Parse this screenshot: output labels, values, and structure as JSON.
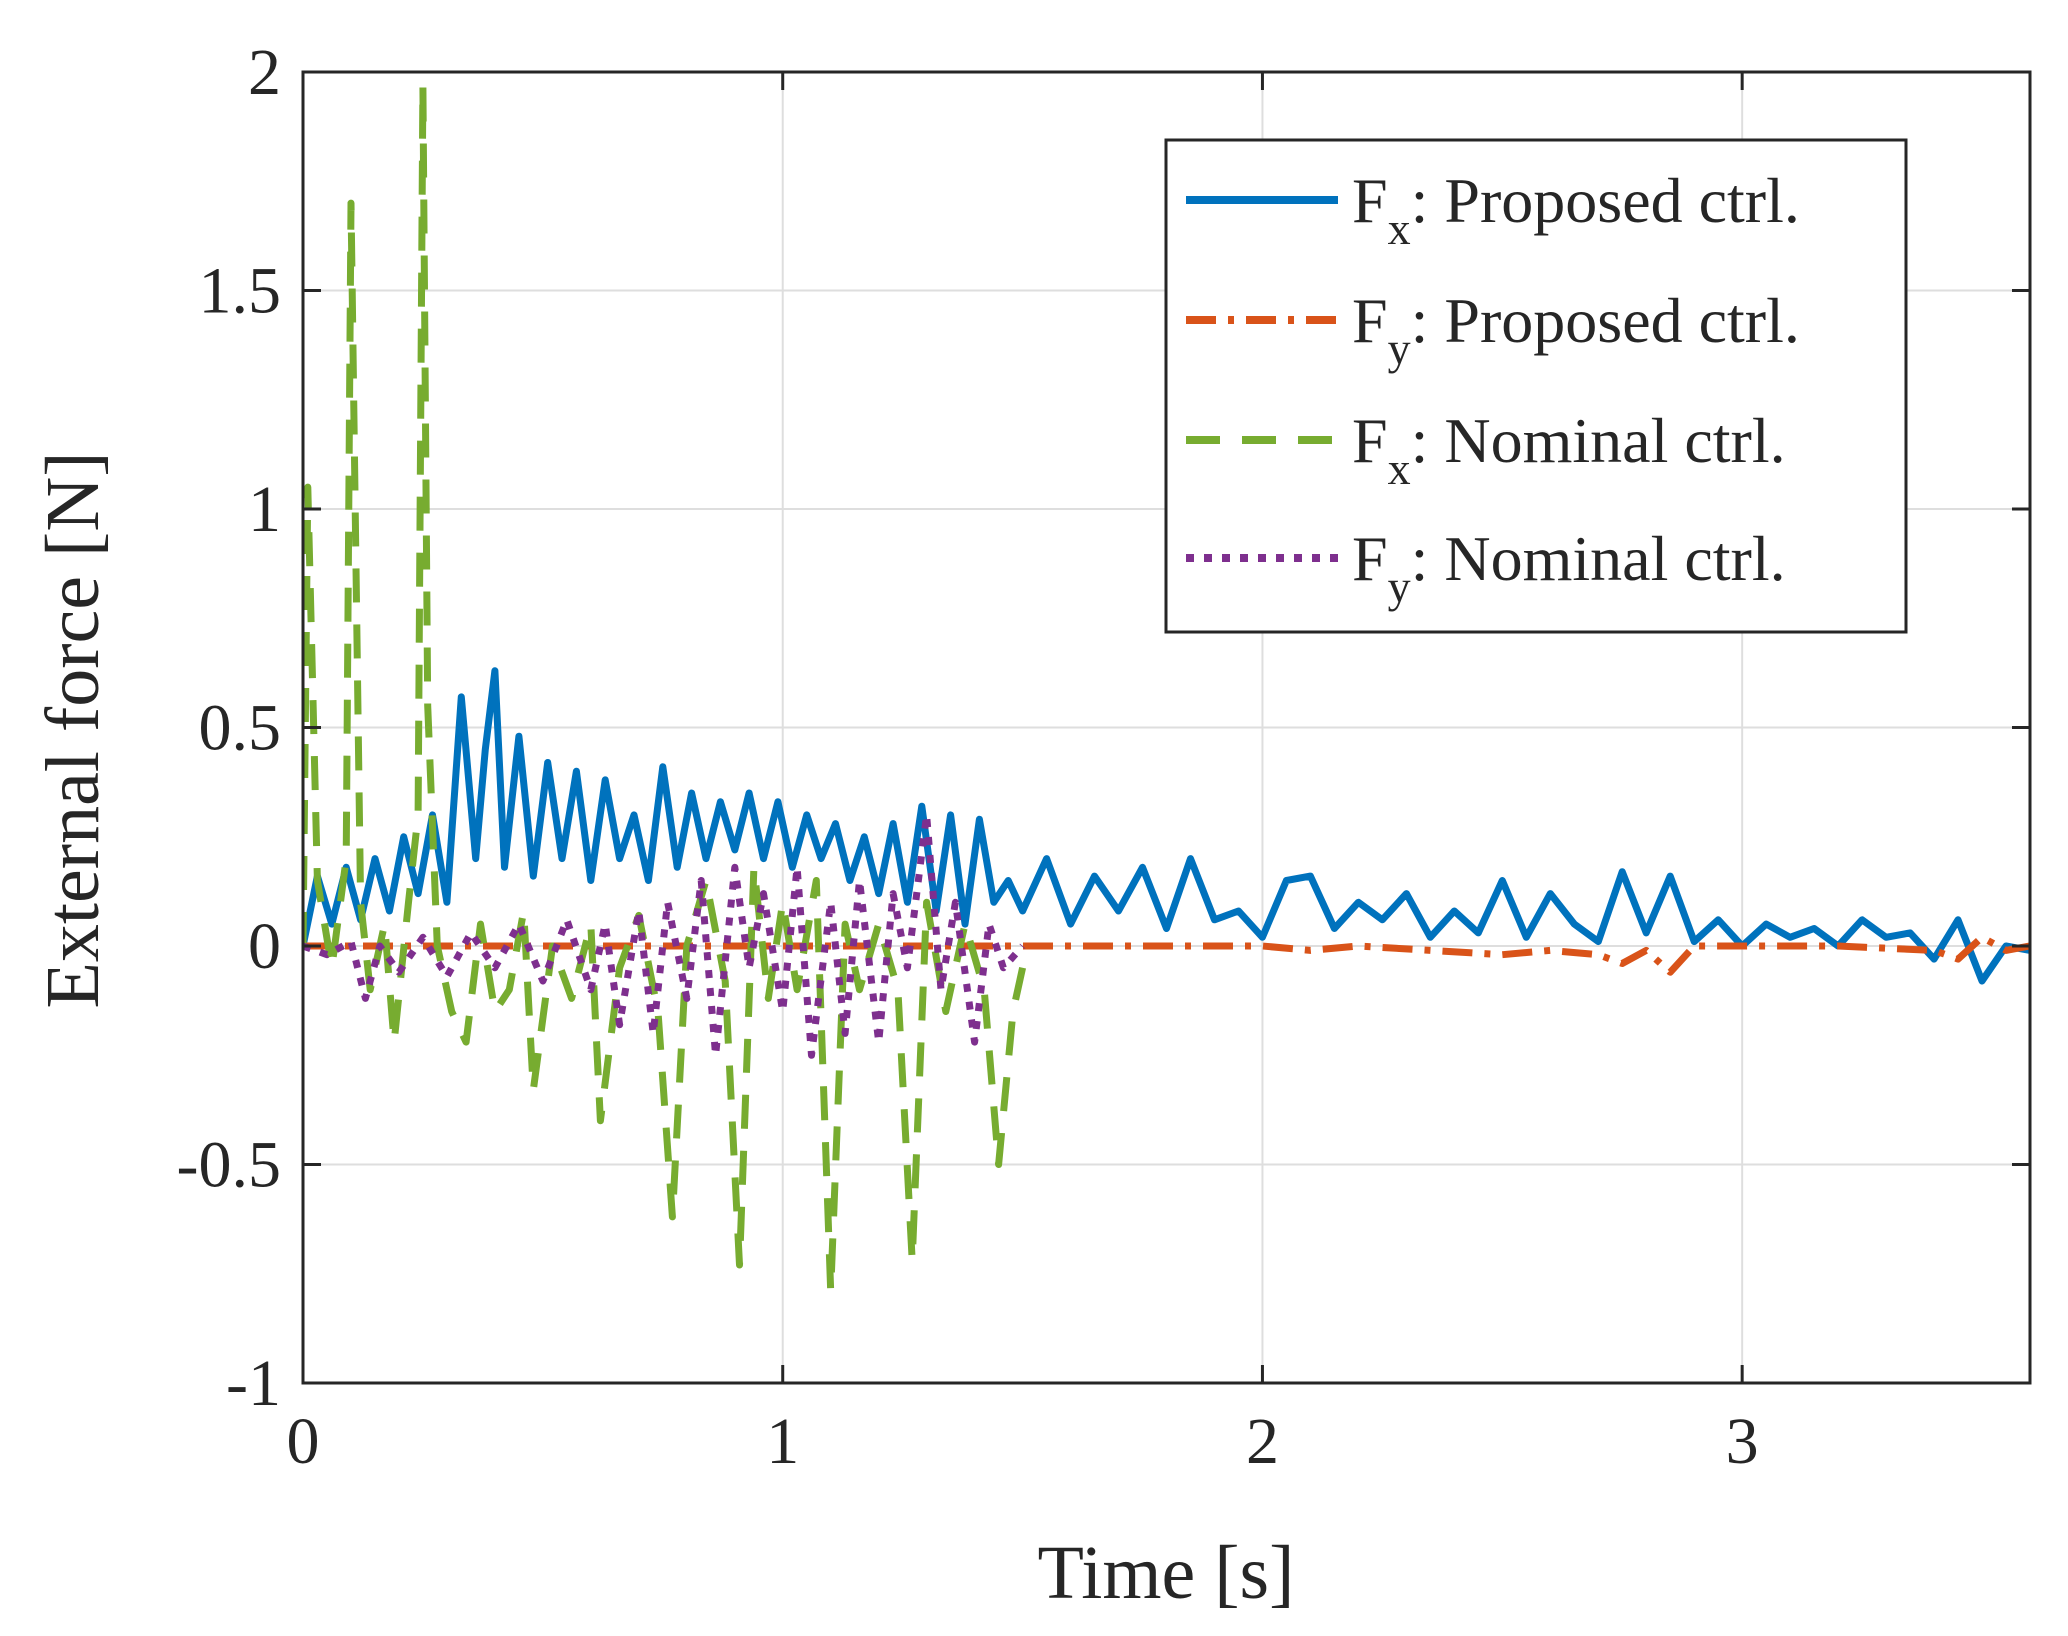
{
  "chart_data": {
    "type": "line",
    "title": "",
    "xlabel": "Time [s]",
    "ylabel": "External force [N]",
    "xlim": [
      0,
      3.6
    ],
    "ylim": [
      -1,
      2
    ],
    "xticks": [
      0,
      1,
      2,
      3
    ],
    "yticks": [
      -1,
      -0.5,
      0,
      0.5,
      1,
      1.5,
      2
    ],
    "xtick_labels": [
      "0",
      "1",
      "2",
      "3"
    ],
    "ytick_labels": [
      "-1",
      "-0.5",
      "0",
      "0.5",
      "1",
      "1.5",
      "2"
    ],
    "grid": true,
    "legend": {
      "position": "top-right",
      "entries": [
        {
          "symbol": "F",
          "subscript": "x",
          "text": ": Proposed ctrl."
        },
        {
          "symbol": "F",
          "subscript": "y",
          "text": ": Proposed ctrl."
        },
        {
          "symbol": "F",
          "subscript": "x",
          "text": ": Nominal ctrl."
        },
        {
          "symbol": "F",
          "subscript": "y",
          "text": ": Nominal ctrl."
        }
      ]
    },
    "series": [
      {
        "name": "Fx: Proposed ctrl.",
        "color": "#0072BD",
        "style": "solid",
        "x": [
          0,
          0.03,
          0.06,
          0.09,
          0.12,
          0.15,
          0.18,
          0.21,
          0.24,
          0.27,
          0.3,
          0.33,
          0.36,
          0.38,
          0.4,
          0.42,
          0.45,
          0.48,
          0.51,
          0.54,
          0.57,
          0.6,
          0.63,
          0.66,
          0.69,
          0.72,
          0.75,
          0.78,
          0.81,
          0.84,
          0.87,
          0.9,
          0.93,
          0.96,
          0.99,
          1.02,
          1.05,
          1.08,
          1.11,
          1.14,
          1.17,
          1.2,
          1.23,
          1.26,
          1.29,
          1.32,
          1.35,
          1.38,
          1.41,
          1.44,
          1.47,
          1.5,
          1.55,
          1.6,
          1.65,
          1.7,
          1.75,
          1.8,
          1.85,
          1.9,
          1.95,
          2.0,
          2.05,
          2.1,
          2.15,
          2.2,
          2.25,
          2.3,
          2.35,
          2.4,
          2.45,
          2.5,
          2.55,
          2.6,
          2.65,
          2.7,
          2.75,
          2.8,
          2.85,
          2.9,
          2.95,
          3.0,
          3.05,
          3.1,
          3.15,
          3.2,
          3.25,
          3.3,
          3.35,
          3.4,
          3.45,
          3.5,
          3.55,
          3.6
        ],
        "values": [
          0.0,
          0.16,
          0.05,
          0.18,
          0.06,
          0.2,
          0.08,
          0.25,
          0.12,
          0.3,
          0.1,
          0.57,
          0.2,
          0.45,
          0.63,
          0.18,
          0.48,
          0.16,
          0.42,
          0.2,
          0.4,
          0.15,
          0.38,
          0.2,
          0.3,
          0.15,
          0.41,
          0.18,
          0.35,
          0.2,
          0.33,
          0.22,
          0.35,
          0.2,
          0.33,
          0.18,
          0.3,
          0.2,
          0.28,
          0.15,
          0.25,
          0.12,
          0.28,
          0.1,
          0.32,
          0.08,
          0.3,
          0.05,
          0.29,
          0.1,
          0.15,
          0.08,
          0.2,
          0.05,
          0.16,
          0.08,
          0.18,
          0.04,
          0.2,
          0.06,
          0.08,
          0.02,
          0.15,
          0.16,
          0.04,
          0.1,
          0.06,
          0.12,
          0.02,
          0.08,
          0.03,
          0.15,
          0.02,
          0.12,
          0.05,
          0.01,
          0.17,
          0.03,
          0.16,
          0.01,
          0.06,
          0.0,
          0.05,
          0.02,
          0.04,
          0.0,
          0.06,
          0.02,
          0.03,
          -0.03,
          0.06,
          -0.08,
          0.0,
          -0.01
        ]
      },
      {
        "name": "Fy: Proposed ctrl.",
        "color": "#D95319",
        "style": "dashdot",
        "x": [
          0,
          0.3,
          0.5,
          0.8,
          1.0,
          1.3,
          1.5,
          1.8,
          2.0,
          2.1,
          2.2,
          2.5,
          2.6,
          2.7,
          2.75,
          2.8,
          2.85,
          2.9,
          3.0,
          3.2,
          3.4,
          3.45,
          3.5,
          3.55,
          3.6
        ],
        "values": [
          0.0,
          0.0,
          0.0,
          0.0,
          0.0,
          0.0,
          0.0,
          0.0,
          0.0,
          -0.01,
          0.0,
          -0.02,
          -0.01,
          -0.02,
          -0.04,
          -0.01,
          -0.06,
          0.0,
          0.0,
          0.0,
          -0.01,
          -0.03,
          0.02,
          -0.01,
          0.0
        ]
      },
      {
        "name": "Fx: Nominal ctrl.",
        "color": "#77AC30",
        "style": "dashed",
        "x": [
          0,
          0.01,
          0.03,
          0.06,
          0.09,
          0.1,
          0.11,
          0.12,
          0.14,
          0.17,
          0.19,
          0.22,
          0.24,
          0.25,
          0.26,
          0.28,
          0.31,
          0.34,
          0.37,
          0.4,
          0.43,
          0.46,
          0.48,
          0.52,
          0.56,
          0.6,
          0.62,
          0.66,
          0.7,
          0.74,
          0.77,
          0.8,
          0.84,
          0.88,
          0.91,
          0.94,
          0.97,
          1.0,
          1.03,
          1.07,
          1.1,
          1.13,
          1.16,
          1.2,
          1.24,
          1.27,
          1.3,
          1.34,
          1.38,
          1.42,
          1.45,
          1.48,
          1.5
        ],
        "values": [
          0.0,
          1.05,
          0.15,
          -0.05,
          0.2,
          1.7,
          0.9,
          0.1,
          -0.1,
          0.05,
          -0.22,
          0.1,
          0.3,
          1.97,
          0.55,
          0.0,
          -0.15,
          -0.22,
          0.05,
          -0.15,
          -0.1,
          0.08,
          -0.33,
          0.0,
          -0.12,
          0.05,
          -0.4,
          -0.05,
          0.07,
          -0.15,
          -0.62,
          0.0,
          0.15,
          -0.08,
          -0.73,
          0.18,
          -0.12,
          0.1,
          -0.1,
          0.15,
          -0.79,
          0.05,
          -0.1,
          0.05,
          -0.1,
          -0.72,
          0.1,
          -0.15,
          0.05,
          -0.1,
          -0.5,
          -0.15,
          -0.05
        ]
      },
      {
        "name": "Fy: Nominal ctrl.",
        "color": "#7E2F8E",
        "style": "dotted",
        "x": [
          0,
          0.05,
          0.1,
          0.13,
          0.16,
          0.2,
          0.25,
          0.3,
          0.35,
          0.4,
          0.45,
          0.5,
          0.55,
          0.6,
          0.63,
          0.66,
          0.7,
          0.73,
          0.76,
          0.8,
          0.83,
          0.86,
          0.9,
          0.93,
          0.96,
          1.0,
          1.03,
          1.06,
          1.1,
          1.13,
          1.16,
          1.2,
          1.23,
          1.26,
          1.3,
          1.33,
          1.36,
          1.4,
          1.43,
          1.46,
          1.5
        ],
        "values": [
          0.0,
          -0.02,
          0.01,
          -0.12,
          0.0,
          -0.06,
          0.02,
          -0.07,
          0.03,
          -0.05,
          0.05,
          -0.08,
          0.06,
          -0.1,
          0.05,
          -0.18,
          0.08,
          -0.2,
          0.1,
          -0.12,
          0.15,
          -0.25,
          0.18,
          -0.05,
          0.12,
          -0.15,
          0.18,
          -0.25,
          0.1,
          -0.2,
          0.15,
          -0.22,
          0.12,
          -0.05,
          0.3,
          -0.1,
          0.1,
          -0.22,
          0.05,
          -0.05,
          0.0
        ]
      }
    ]
  }
}
